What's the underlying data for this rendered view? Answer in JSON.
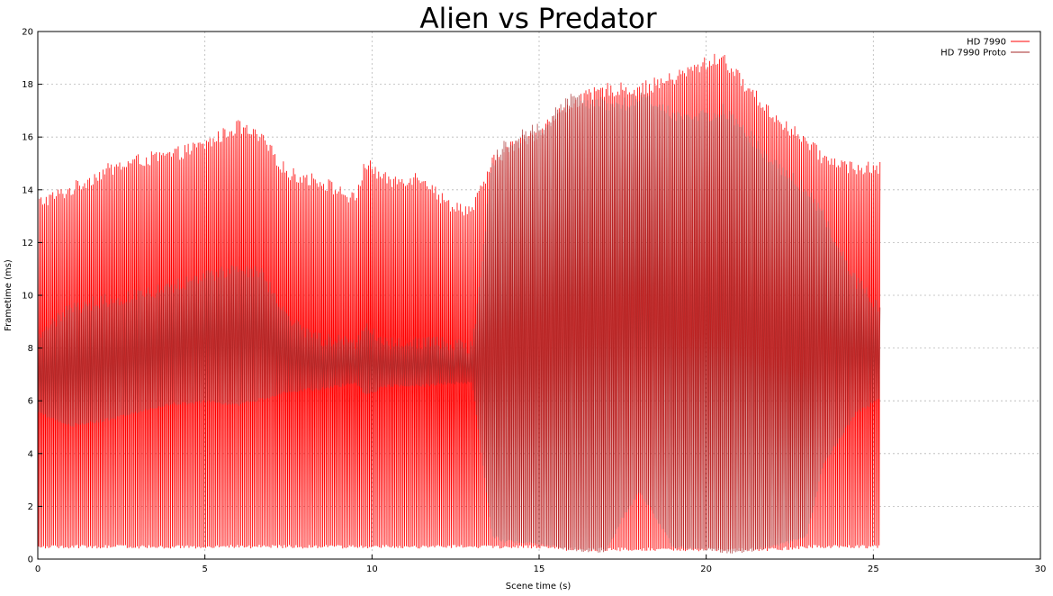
{
  "chart_data": {
    "type": "line",
    "title": "Alien vs Predator",
    "xlabel": "Scene time (s)",
    "ylabel": "Frametime (ms)",
    "xlim": [
      0,
      30
    ],
    "ylim": [
      0,
      20
    ],
    "x_ticks": [
      0,
      5,
      10,
      15,
      20,
      25,
      30
    ],
    "y_ticks": [
      0,
      2,
      4,
      6,
      8,
      10,
      12,
      14,
      16,
      18,
      20
    ],
    "grid": true,
    "legend_position": "top-right",
    "sample_step": 0.05,
    "series": [
      {
        "name": "HD 7990",
        "color": "#ff0000",
        "style": "alternating",
        "x": [
          0,
          1,
          2,
          3,
          4,
          5,
          6,
          6.7,
          7.5,
          8.5,
          9.5,
          9.8,
          10.5,
          11.5,
          12.2,
          13,
          13.6,
          14,
          15,
          16,
          17,
          18,
          19,
          20,
          20.5,
          21,
          22,
          23,
          23.5,
          24.5,
          25.2
        ],
        "upper": [
          13.5,
          14.0,
          14.7,
          15.1,
          15.3,
          15.7,
          16.4,
          15.9,
          14.6,
          14.3,
          13.6,
          15.0,
          14.3,
          14.5,
          13.5,
          13.2,
          15.0,
          15.5,
          16.2,
          17.3,
          17.8,
          17.8,
          18.2,
          18.8,
          19.0,
          18.2,
          16.8,
          15.8,
          15.2,
          14.8,
          14.8
        ],
        "lower": [
          0.4,
          0.4,
          0.4,
          0.4,
          0.4,
          0.4,
          0.4,
          0.4,
          0.4,
          0.4,
          0.4,
          0.4,
          0.4,
          0.4,
          0.4,
          0.4,
          0.4,
          0.4,
          0.4,
          0.3,
          0.3,
          0.3,
          0.3,
          0.3,
          0.3,
          0.3,
          0.3,
          0.4,
          0.4,
          0.4,
          0.4
        ]
      },
      {
        "name": "HD 7990 Proto",
        "color": "#a52a2a",
        "style": "alternating",
        "x": [
          0,
          1,
          2,
          3,
          4,
          5,
          6,
          6.7,
          7.5,
          8.5,
          9.5,
          9.8,
          10.5,
          11.5,
          12.2,
          13,
          13.6,
          14,
          15,
          16,
          17,
          17.5,
          18,
          18.5,
          19,
          20,
          20.5,
          21,
          22,
          23,
          23.5,
          24.5,
          25.2
        ],
        "upper": [
          8.5,
          9.5,
          9.8,
          10.0,
          10.3,
          10.7,
          11.0,
          10.8,
          9.0,
          8.3,
          8.2,
          8.8,
          8.2,
          8.2,
          8.2,
          8.0,
          15.0,
          15.8,
          16.3,
          17.5,
          17.2,
          17.2,
          17.5,
          17.2,
          16.8,
          16.8,
          17.0,
          16.5,
          15.0,
          14.0,
          13.0,
          10.5,
          9.5
        ],
        "lower": [
          5.5,
          5.0,
          5.2,
          5.5,
          5.8,
          5.9,
          5.8,
          6.0,
          6.3,
          6.4,
          6.6,
          6.2,
          6.5,
          6.5,
          6.6,
          6.6,
          0.8,
          0.6,
          0.5,
          0.3,
          0.2,
          1.5,
          2.5,
          1.5,
          0.4,
          0.3,
          0.2,
          0.2,
          0.4,
          0.8,
          3.5,
          5.5,
          6.0
        ]
      }
    ]
  }
}
